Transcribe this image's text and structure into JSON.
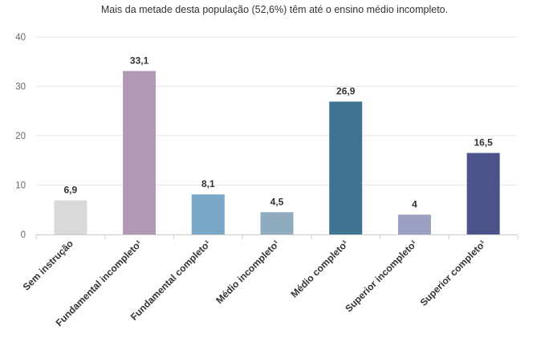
{
  "subtitle": "Mais da metade desta população (52,6%) têm até o ensino médio incompleto.",
  "chart_data": {
    "type": "bar",
    "categories": [
      "Sem instrução",
      "Fundamental incompleto¹",
      "Fundamental completo¹",
      "Médio incompleto¹",
      "Médio completo¹",
      "Superior incompleto¹",
      "Superior completo¹"
    ],
    "values": [
      6.9,
      33.1,
      8.1,
      4.5,
      26.9,
      4,
      16.5
    ],
    "value_labels": [
      "6,9",
      "33,1",
      "8,1",
      "4,5",
      "26,9",
      "4",
      "16,5"
    ],
    "colors": [
      "#d9d9d9",
      "#b09ab3",
      "#7aa6c8",
      "#8eabbf",
      "#3e7492",
      "#9b9fc1",
      "#4a548a"
    ],
    "yticks": [
      0,
      10,
      20,
      30,
      40
    ],
    "ylim": [
      0,
      40
    ],
    "grid": true,
    "legend": "none"
  }
}
